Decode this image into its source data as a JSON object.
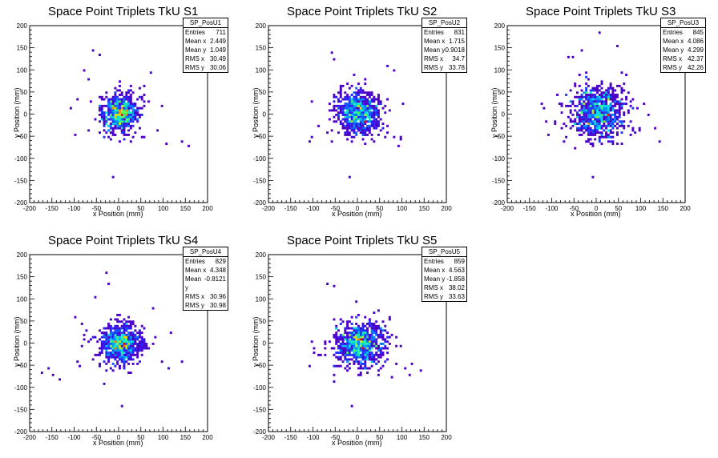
{
  "chart_data": [
    {
      "type": "heatmap",
      "title": "Space Point Triplets TkU S1",
      "xlabel": "x Position (mm)",
      "ylabel": "y Position (mm)",
      "xlim": [
        -200,
        200
      ],
      "ylim": [
        -200,
        200
      ],
      "x_ticks": [
        "-200",
        "-150",
        "-100",
        "-50",
        "0",
        "50",
        "100",
        "150",
        "200"
      ],
      "y_ticks": [
        "-200",
        "-150",
        "-100",
        "-50",
        "0",
        "50",
        "100",
        "150",
        "200"
      ],
      "stats": {
        "name": "SP_PosU1",
        "rows": [
          {
            "label": "Entries",
            "value": "711"
          },
          {
            "label": "Mean x",
            "value": "2.449"
          },
          {
            "label": "Mean y",
            "value": "1.049"
          },
          {
            "label": "RMS x",
            "value": "30.49"
          },
          {
            "label": "RMS y",
            "value": "30.06"
          }
        ]
      },
      "mean": [
        2.449,
        1.049
      ],
      "rms": [
        30.49,
        30.06
      ],
      "entries": 711,
      "outliers": [
        [
          -60,
          140
        ],
        [
          -45,
          130
        ],
        [
          -70,
          75
        ],
        [
          -95,
          30
        ],
        [
          -110,
          10
        ],
        [
          -100,
          -50
        ],
        [
          -70,
          -40
        ],
        [
          85,
          -40
        ],
        [
          105,
          -70
        ],
        [
          140,
          -65
        ],
        [
          155,
          -75
        ],
        [
          55,
          60
        ],
        [
          70,
          90
        ],
        [
          -15,
          -145
        ],
        [
          30,
          -55
        ],
        [
          -35,
          -55
        ],
        [
          95,
          15
        ],
        [
          -80,
          95
        ]
      ]
    },
    {
      "type": "heatmap",
      "title": "Space Point Triplets TkU S2",
      "xlabel": "x Position (mm)",
      "ylabel": "y Position (mm)",
      "xlim": [
        -200,
        200
      ],
      "ylim": [
        -200,
        200
      ],
      "x_ticks": [
        "-200",
        "-150",
        "-100",
        "-50",
        "0",
        "50",
        "100",
        "150",
        "200"
      ],
      "y_ticks": [
        "-200",
        "-150",
        "-100",
        "-50",
        "0",
        "50",
        "100",
        "150",
        "200"
      ],
      "stats": {
        "name": "SP_PosU2",
        "rows": [
          {
            "label": "Entries",
            "value": "831"
          },
          {
            "label": "Mean x",
            "value": "1.715"
          },
          {
            "label": "Mean y",
            "value": "0.9018"
          },
          {
            "label": "RMS x",
            "value": "34.7"
          },
          {
            "label": "RMS y",
            "value": "33.78"
          }
        ]
      },
      "mean": [
        1.715,
        0.9018
      ],
      "rms": [
        34.7,
        33.78
      ],
      "entries": 831,
      "outliers": [
        [
          -60,
          135
        ],
        [
          -55,
          120
        ],
        [
          -105,
          -55
        ],
        [
          -110,
          -65
        ],
        [
          -90,
          -30
        ],
        [
          95,
          -60
        ],
        [
          90,
          -75
        ],
        [
          80,
          -55
        ],
        [
          95,
          -55
        ],
        [
          -20,
          -145
        ],
        [
          -60,
          -65
        ],
        [
          65,
          105
        ],
        [
          80,
          95
        ],
        [
          -105,
          25
        ],
        [
          100,
          20
        ]
      ]
    },
    {
      "type": "heatmap",
      "title": "Space Point Triplets TkU S3",
      "xlabel": "x Position (mm)",
      "ylabel": "y Position (mm)",
      "xlim": [
        -200,
        200
      ],
      "ylim": [
        -200,
        200
      ],
      "x_ticks": [
        "-200",
        "-150",
        "-100",
        "-50",
        "0",
        "50",
        "100",
        "150",
        "200"
      ],
      "y_ticks": [
        "-200",
        "-150",
        "-100",
        "-50",
        "0",
        "50",
        "100",
        "150",
        "200"
      ],
      "stats": {
        "name": "SP_PosU3",
        "rows": [
          {
            "label": "Entries",
            "value": "845"
          },
          {
            "label": "Mean x",
            "value": "4.086"
          },
          {
            "label": "Mean y",
            "value": "4.299"
          },
          {
            "label": "RMS x",
            "value": "42.37"
          },
          {
            "label": "RMS y",
            "value": "42.26"
          }
        ]
      },
      "mean": [
        4.086,
        4.299
      ],
      "rms": [
        42.37,
        42.26
      ],
      "entries": 845,
      "outliers": [
        [
          5,
          180
        ],
        [
          -35,
          140
        ],
        [
          45,
          150
        ],
        [
          -65,
          125
        ],
        [
          -55,
          125
        ],
        [
          -110,
          -50
        ],
        [
          -115,
          -20
        ],
        [
          -125,
          20
        ],
        [
          115,
          -5
        ],
        [
          140,
          -65
        ],
        [
          130,
          -35
        ],
        [
          -10,
          -145
        ],
        [
          55,
          -70
        ],
        [
          -50,
          -80
        ],
        [
          95,
          -40
        ],
        [
          -120,
          10
        ]
      ]
    },
    {
      "type": "heatmap",
      "title": "Space Point Triplets TkU S4",
      "xlabel": "x Position (mm)",
      "ylabel": "y Position (mm)",
      "xlim": [
        -200,
        200
      ],
      "ylim": [
        -200,
        200
      ],
      "x_ticks": [
        "-200",
        "-150",
        "-100",
        "-50",
        "0",
        "50",
        "100",
        "150",
        "200"
      ],
      "y_ticks": [
        "-200",
        "-150",
        "-100",
        "-50",
        "0",
        "50",
        "100",
        "150",
        "200"
      ],
      "stats": {
        "name": "SP_PosU4",
        "rows": [
          {
            "label": "Entries",
            "value": "829"
          },
          {
            "label": "Mean x",
            "value": "4.348"
          },
          {
            "label": "Mean y",
            "value": "-0.8121"
          },
          {
            "label": "RMS x",
            "value": "30.96"
          },
          {
            "label": "RMS y",
            "value": "30.98"
          }
        ]
      },
      "mean": [
        4.348,
        -0.8121
      ],
      "rms": [
        30.96,
        30.98
      ],
      "entries": 829,
      "outliers": [
        [
          -30,
          155
        ],
        [
          -25,
          130
        ],
        [
          -55,
          100
        ],
        [
          -85,
          40
        ],
        [
          -100,
          55
        ],
        [
          -150,
          -75
        ],
        [
          -175,
          -70
        ],
        [
          -160,
          -60
        ],
        [
          -135,
          -85
        ],
        [
          -90,
          -55
        ],
        [
          -95,
          -45
        ],
        [
          -35,
          -95
        ],
        [
          95,
          -45
        ],
        [
          140,
          -45
        ],
        [
          110,
          -60
        ],
        [
          5,
          -145
        ],
        [
          -85,
          -10
        ],
        [
          115,
          20
        ],
        [
          75,
          75
        ]
      ]
    },
    {
      "type": "heatmap",
      "title": "Space Point Triplets TkU S5",
      "xlabel": "x Position (mm)",
      "ylabel": "y Position (mm)",
      "xlim": [
        -200,
        200
      ],
      "ylim": [
        -200,
        200
      ],
      "x_ticks": [
        "-200",
        "-150",
        "-100",
        "-50",
        "0",
        "50",
        "100",
        "150",
        "200"
      ],
      "y_ticks": [
        "-200",
        "-150",
        "-100",
        "-50",
        "0",
        "50",
        "100",
        "150",
        "200"
      ],
      "stats": {
        "name": "SP_PosU5",
        "rows": [
          {
            "label": "Entries",
            "value": "859"
          },
          {
            "label": "Mean x",
            "value": "4.563"
          },
          {
            "label": "Mean y",
            "value": "-1.858"
          },
          {
            "label": "RMS x",
            "value": "38.02"
          },
          {
            "label": "RMS y",
            "value": "33.63"
          }
        ]
      },
      "mean": [
        4.563,
        -1.858
      ],
      "rms": [
        38.02,
        33.63
      ],
      "entries": 859,
      "outliers": [
        [
          -70,
          130
        ],
        [
          -55,
          125
        ],
        [
          -110,
          -55
        ],
        [
          -100,
          -25
        ],
        [
          -105,
          0
        ],
        [
          -55,
          -90
        ],
        [
          -15,
          -145
        ],
        [
          105,
          -60
        ],
        [
          140,
          -65
        ],
        [
          115,
          -75
        ],
        [
          120,
          -50
        ],
        [
          75,
          -80
        ],
        [
          60,
          -45
        ],
        [
          -90,
          -30
        ]
      ]
    }
  ]
}
